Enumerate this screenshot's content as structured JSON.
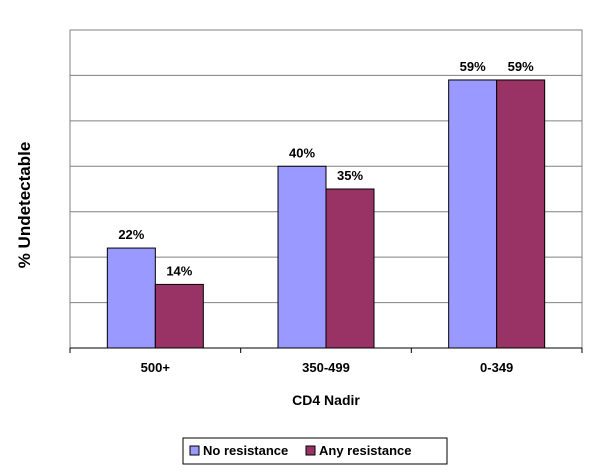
{
  "chart_data": {
    "type": "bar",
    "categories": [
      "500+",
      "350-499",
      "0-349"
    ],
    "series": [
      {
        "name": "No resistance",
        "values": [
          22,
          40,
          59
        ],
        "labels": [
          "22%",
          "40%",
          "59%"
        ],
        "color": "#9999ff"
      },
      {
        "name": "Any resistance",
        "values": [
          14,
          35,
          59
        ],
        "labels": [
          "14%",
          "35%",
          "59%"
        ],
        "color": "#993366"
      }
    ],
    "xlabel": "CD4 Nadir",
    "ylabel": "% Undetectable",
    "ylim": [
      0,
      70
    ],
    "ytick_step": 10,
    "ytick_labels_shown": false,
    "grid": true,
    "legend": "bottom-center"
  }
}
